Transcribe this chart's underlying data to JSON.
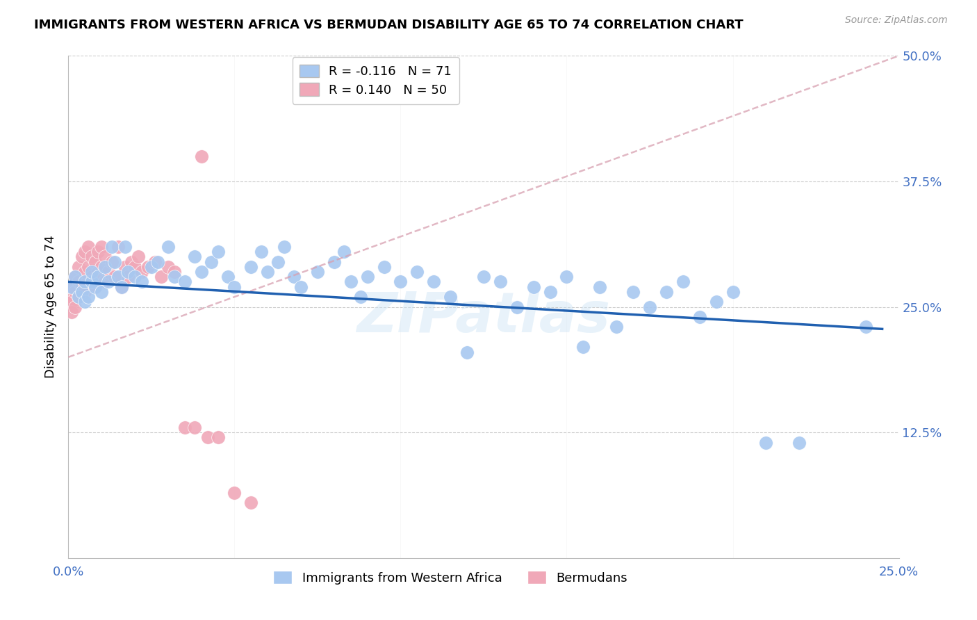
{
  "title": "IMMIGRANTS FROM WESTERN AFRICA VS BERMUDAN DISABILITY AGE 65 TO 74 CORRELATION CHART",
  "source": "Source: ZipAtlas.com",
  "ylabel": "Disability Age 65 to 74",
  "xlim": [
    0.0,
    0.25
  ],
  "ylim": [
    0.0,
    0.5
  ],
  "blue_R": -0.116,
  "blue_N": 71,
  "pink_R": 0.14,
  "pink_N": 50,
  "blue_color": "#a8c8f0",
  "pink_color": "#f0a8b8",
  "blue_line_color": "#2060b0",
  "pink_line_color": "#e8a0b0",
  "watermark": "ZIPatlas",
  "legend_blue_label": "Immigrants from Western Africa",
  "legend_pink_label": "Bermudans",
  "blue_x": [
    0.001,
    0.002,
    0.003,
    0.004,
    0.005,
    0.005,
    0.006,
    0.007,
    0.007,
    0.008,
    0.009,
    0.01,
    0.011,
    0.012,
    0.013,
    0.014,
    0.015,
    0.016,
    0.017,
    0.018,
    0.02,
    0.022,
    0.025,
    0.027,
    0.03,
    0.032,
    0.035,
    0.038,
    0.04,
    0.043,
    0.045,
    0.048,
    0.05,
    0.055,
    0.058,
    0.06,
    0.063,
    0.065,
    0.068,
    0.07,
    0.075,
    0.08,
    0.083,
    0.085,
    0.088,
    0.09,
    0.095,
    0.1,
    0.105,
    0.11,
    0.115,
    0.12,
    0.125,
    0.13,
    0.135,
    0.14,
    0.145,
    0.15,
    0.155,
    0.16,
    0.165,
    0.17,
    0.175,
    0.18,
    0.185,
    0.19,
    0.195,
    0.2,
    0.21,
    0.22,
    0.24
  ],
  "blue_y": [
    0.27,
    0.28,
    0.26,
    0.265,
    0.275,
    0.255,
    0.26,
    0.275,
    0.285,
    0.27,
    0.28,
    0.265,
    0.29,
    0.275,
    0.31,
    0.295,
    0.28,
    0.27,
    0.31,
    0.285,
    0.28,
    0.275,
    0.29,
    0.295,
    0.31,
    0.28,
    0.275,
    0.3,
    0.285,
    0.295,
    0.305,
    0.28,
    0.27,
    0.29,
    0.305,
    0.285,
    0.295,
    0.31,
    0.28,
    0.27,
    0.285,
    0.295,
    0.305,
    0.275,
    0.26,
    0.28,
    0.29,
    0.275,
    0.285,
    0.275,
    0.26,
    0.205,
    0.28,
    0.275,
    0.25,
    0.27,
    0.265,
    0.28,
    0.21,
    0.27,
    0.23,
    0.265,
    0.25,
    0.265,
    0.275,
    0.24,
    0.255,
    0.265,
    0.115,
    0.115,
    0.23
  ],
  "pink_x": [
    0.0005,
    0.001,
    0.001,
    0.001,
    0.002,
    0.002,
    0.002,
    0.003,
    0.003,
    0.003,
    0.004,
    0.004,
    0.005,
    0.005,
    0.005,
    0.006,
    0.006,
    0.007,
    0.007,
    0.008,
    0.008,
    0.009,
    0.009,
    0.01,
    0.01,
    0.011,
    0.011,
    0.012,
    0.013,
    0.014,
    0.015,
    0.016,
    0.017,
    0.018,
    0.019,
    0.02,
    0.021,
    0.022,
    0.024,
    0.026,
    0.028,
    0.03,
    0.032,
    0.035,
    0.038,
    0.04,
    0.042,
    0.045,
    0.05,
    0.055
  ],
  "pink_y": [
    0.26,
    0.27,
    0.255,
    0.245,
    0.28,
    0.265,
    0.25,
    0.275,
    0.26,
    0.29,
    0.27,
    0.3,
    0.285,
    0.305,
    0.265,
    0.29,
    0.31,
    0.28,
    0.3,
    0.295,
    0.27,
    0.285,
    0.305,
    0.29,
    0.31,
    0.275,
    0.3,
    0.285,
    0.295,
    0.28,
    0.31,
    0.27,
    0.29,
    0.28,
    0.295,
    0.29,
    0.3,
    0.285,
    0.29,
    0.295,
    0.28,
    0.29,
    0.285,
    0.13,
    0.13,
    0.4,
    0.12,
    0.12,
    0.065,
    0.055
  ],
  "blue_line_x": [
    0.0,
    0.245
  ],
  "blue_line_y": [
    0.275,
    0.228
  ],
  "pink_line_x": [
    0.0,
    0.25
  ],
  "pink_line_y": [
    0.2,
    0.5
  ]
}
